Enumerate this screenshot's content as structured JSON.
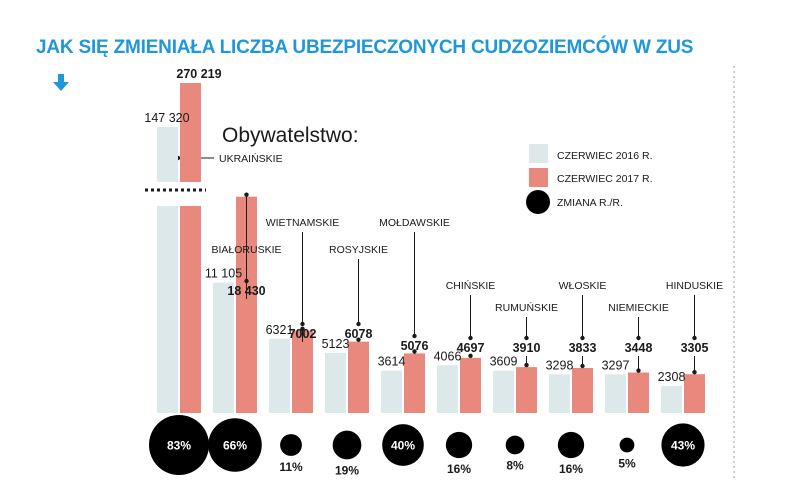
{
  "title": "JAK SIĘ ZMIENIAŁA LICZBA UBEZPIECZONYCH CUDZOZIEMCÓW W ZUS",
  "colors": {
    "title": "#1f97d8",
    "y2016": "#dce8ea",
    "y2017": "#e9897d",
    "change": "#000000"
  },
  "legend": {
    "heading": "Obywatelstwo:",
    "items": [
      {
        "label": "CZERWIEC 2016 R.",
        "kind": "y2016"
      },
      {
        "label": "CZERWIEC 2017 R.",
        "kind": "y2017"
      },
      {
        "label": "ZMIANA R./R.",
        "kind": "change"
      }
    ]
  },
  "chart_data": {
    "type": "bar",
    "note": "first group (UKRAIŃSKIE) uses a broken axis",
    "categories": [
      "UKRAIŃSKIE",
      "BIAŁORUSKIE",
      "WIETNAMSKIE",
      "ROSYJSKIE",
      "MOŁDAWSKIE",
      "CHIŃSKIE",
      "RUMUŃSKIE",
      "WŁOSKIE",
      "NIEMIECKIE",
      "HINDUSKIE"
    ],
    "series": [
      {
        "name": "CZERWIEC 2016 R.",
        "values": [
          147320,
          11105,
          6321,
          5123,
          3614,
          4066,
          3609,
          3298,
          3297,
          2308
        ],
        "labels": [
          "147 320",
          "11 105",
          "6321",
          "5123",
          "3614",
          "4066",
          "3609",
          "3298",
          "3297",
          "2308"
        ]
      },
      {
        "name": "CZERWIEC 2017 R.",
        "values": [
          270219,
          18430,
          7002,
          6078,
          5076,
          4697,
          3910,
          3833,
          3448,
          3305
        ],
        "labels": [
          "270 219",
          "18 430",
          "7002",
          "6078",
          "5076",
          "4697",
          "3910",
          "3833",
          "3448",
          "3305"
        ]
      }
    ],
    "change": {
      "name": "ZMIANA R./R.",
      "values": [
        83,
        66,
        11,
        19,
        40,
        16,
        8,
        16,
        5,
        43
      ],
      "labels": [
        "83%",
        "66%",
        "11%",
        "19%",
        "40%",
        "16%",
        "8%",
        "16%",
        "5%",
        "43%"
      ]
    }
  }
}
